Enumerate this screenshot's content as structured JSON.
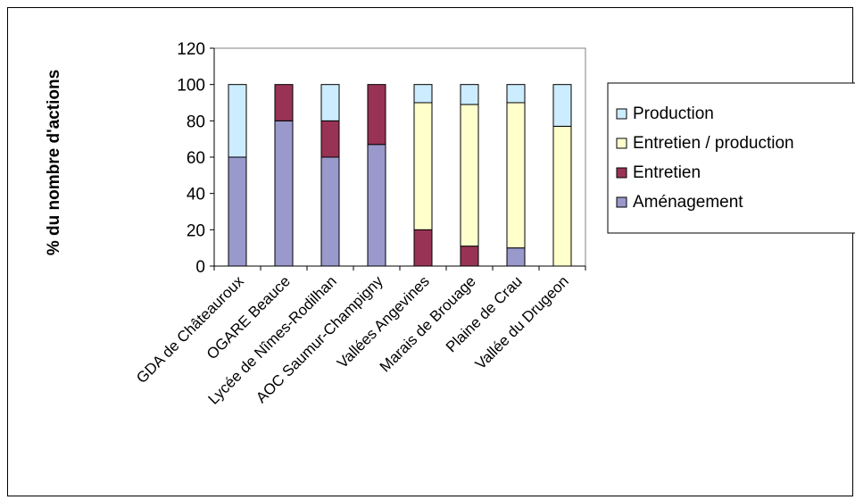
{
  "chart_data": {
    "type": "bar",
    "stacked": true,
    "title": "",
    "xlabel": "",
    "ylabel": "% du nombre d'actions",
    "ylim": [
      0,
      120
    ],
    "yticks": [
      0,
      20,
      40,
      60,
      80,
      100,
      120
    ],
    "grid": false,
    "legend_position": "right",
    "categories": [
      "GDA de Châteauroux",
      "OGARE Beauce",
      "Lycée de Nîmes-Rodilhan",
      "AOC Saumur-Champigny",
      "Vallées Angevines",
      "Marais de Brouage",
      "Plaine de Crau",
      "Vallée du Drugeon"
    ],
    "series": [
      {
        "name": "Aménagement",
        "color": "#9999cc",
        "values": [
          60,
          80,
          60,
          67,
          0,
          0,
          10,
          0
        ]
      },
      {
        "name": "Entretien",
        "color": "#993355",
        "values": [
          0,
          20,
          20,
          33,
          20,
          11,
          0,
          0
        ]
      },
      {
        "name": "Entretien / production",
        "color": "#ffffcc",
        "values": [
          0,
          0,
          0,
          0,
          70,
          78,
          80,
          77
        ]
      },
      {
        "name": "Production",
        "color": "#ccecff",
        "values": [
          40,
          0,
          20,
          0,
          10,
          11,
          10,
          23
        ]
      }
    ],
    "legend_order": [
      "Production",
      "Entretien / production",
      "Entretien",
      "Aménagement"
    ]
  }
}
